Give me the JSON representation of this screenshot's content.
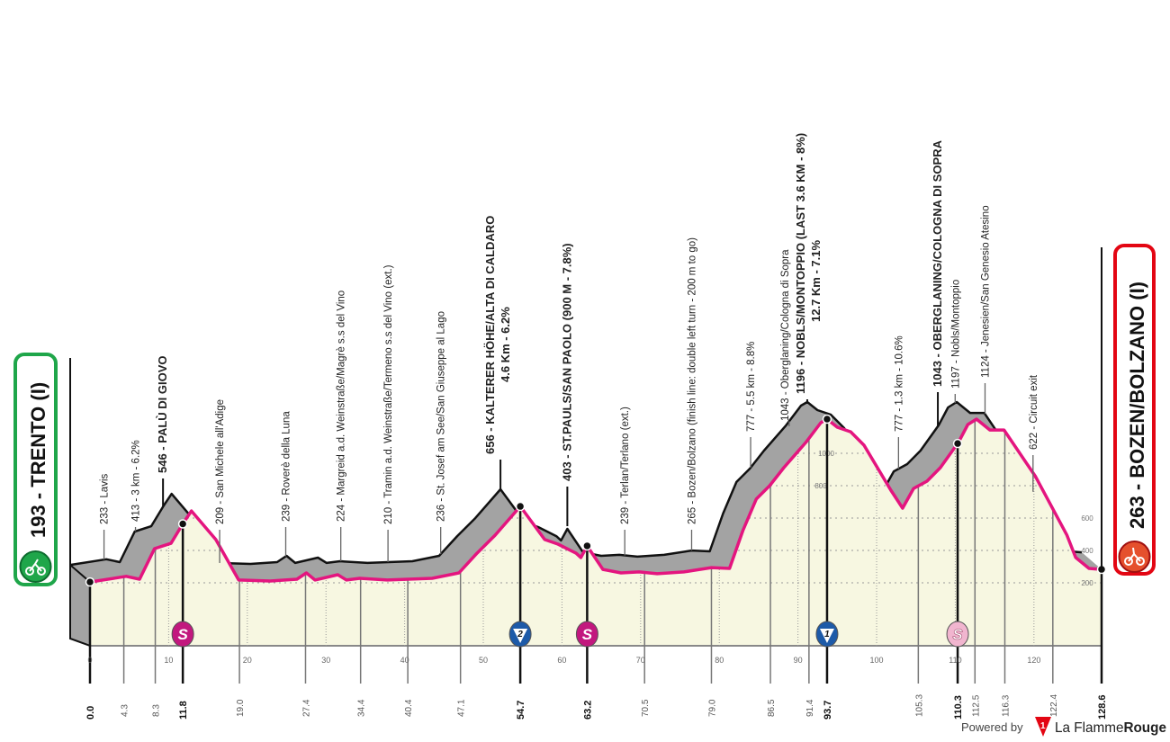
{
  "start": {
    "label": "193 - TRENTO (I)",
    "color": "#1fa64a"
  },
  "finish": {
    "label": "263 - BOZEN/BOLZANO (I)",
    "color": "#e30613"
  },
  "footer": {
    "powered": "Powered by",
    "brand_a": "La Flamme",
    "brand_b": "Rouge",
    "logo_digit": "1"
  },
  "chart_data": {
    "type": "area",
    "xlabel": "",
    "ylabel": "",
    "xlim": [
      0,
      128.6
    ],
    "x_ticks": [
      0,
      10,
      20,
      30,
      40,
      50,
      60,
      70,
      80,
      90,
      100,
      110,
      120
    ],
    "y_ticks": [
      200,
      400,
      600,
      800,
      1000
    ],
    "colors": {
      "profile_line": "#e4157f",
      "profile_fill": "#f7f7e1",
      "side": "#a3a3a3",
      "kom": "#1d5aa8",
      "sprint": "#c2187e",
      "sprint_light": "#f1b5cf"
    },
    "profile": [
      [
        0,
        205
      ],
      [
        4.6,
        240
      ],
      [
        6.3,
        222
      ],
      [
        8.2,
        411
      ],
      [
        10.3,
        444
      ],
      [
        11.9,
        572
      ],
      [
        12.9,
        644
      ],
      [
        16,
        467
      ],
      [
        18.9,
        217
      ],
      [
        22.9,
        211
      ],
      [
        26.3,
        222
      ],
      [
        27.5,
        261
      ],
      [
        28.6,
        217
      ],
      [
        31.5,
        250
      ],
      [
        32.6,
        217
      ],
      [
        34.3,
        228
      ],
      [
        37.8,
        217
      ],
      [
        43.5,
        228
      ],
      [
        46.9,
        261
      ],
      [
        49.2,
        383
      ],
      [
        51.5,
        494
      ],
      [
        54.7,
        672
      ],
      [
        57.8,
        467
      ],
      [
        59.5,
        439
      ],
      [
        61.8,
        383
      ],
      [
        62.4,
        356
      ],
      [
        63.2,
        428
      ],
      [
        65.2,
        283
      ],
      [
        67.5,
        261
      ],
      [
        69.8,
        267
      ],
      [
        72.1,
        256
      ],
      [
        75.5,
        267
      ],
      [
        79,
        294
      ],
      [
        81.3,
        289
      ],
      [
        83,
        522
      ],
      [
        84.7,
        717
      ],
      [
        86.4,
        800
      ],
      [
        88.2,
        911
      ],
      [
        91,
        1067
      ],
      [
        92.9,
        1189
      ],
      [
        93.7,
        1211
      ],
      [
        95,
        1161
      ],
      [
        96.7,
        1133
      ],
      [
        98.4,
        1050
      ],
      [
        101.8,
        772
      ],
      [
        103.3,
        661
      ],
      [
        104.7,
        783
      ],
      [
        106.4,
        828
      ],
      [
        108.1,
        911
      ],
      [
        110.4,
        1067
      ],
      [
        111.6,
        1178
      ],
      [
        112.7,
        1211
      ],
      [
        114.4,
        1144
      ],
      [
        116.2,
        1144
      ],
      [
        120.2,
        856
      ],
      [
        124.2,
        494
      ],
      [
        125.3,
        356
      ],
      [
        127,
        289
      ],
      [
        128.6,
        283
      ]
    ],
    "km_points": [
      {
        "km": "0.0",
        "bold": true
      },
      {
        "km": "4.3"
      },
      {
        "km": "8.3"
      },
      {
        "km": "11.8",
        "bold": true
      },
      {
        "km": "19.0"
      },
      {
        "km": "27.4"
      },
      {
        "km": "34.4"
      },
      {
        "km": "40.4"
      },
      {
        "km": "47.1"
      },
      {
        "km": "54.7",
        "bold": true
      },
      {
        "km": "63.2",
        "bold": true
      },
      {
        "km": "70.5"
      },
      {
        "km": "79.0"
      },
      {
        "km": "86.5"
      },
      {
        "km": "91.4"
      },
      {
        "km": "93.7",
        "bold": true
      },
      {
        "km": "105.3"
      },
      {
        "km": "110.3",
        "bold": true
      },
      {
        "km": "112.5"
      },
      {
        "km": "116.3"
      },
      {
        "km": "122.4"
      },
      {
        "km": "128.6",
        "bold": true
      }
    ],
    "annotations": [
      {
        "km": 4.3,
        "text": "233 - Lavis"
      },
      {
        "km": 8.3,
        "text": "413 - 3 km - 6.2%"
      },
      {
        "km": 11.8,
        "text": "546 - PALÙ DI GIOVO",
        "bold": true
      },
      {
        "km": 19.0,
        "text": "209 - San Michele all'Adige"
      },
      {
        "km": 27.4,
        "text": "239 - Roverè della Luna"
      },
      {
        "km": 34.4,
        "text": "224 - Margreid a.d. Weinstraße/Magrè s.s del Vino"
      },
      {
        "km": 40.4,
        "text": "210 - Tramin a.d. Weinstraße/Termeno s.s del Vino (ext.)"
      },
      {
        "km": 47.1,
        "text": "236 - St. Josef am See/San Giuseppe al Lago"
      },
      {
        "km": 54.7,
        "text": "656 - KALTERER HÖHE/ALTA DI CALDARO",
        "sub": "4.6 Km - 6.2%",
        "bold": true
      },
      {
        "km": 63.2,
        "text": "403 - ST.PAULS/SAN PAOLO (900 M - 7.8%)",
        "bold": true
      },
      {
        "km": 70.5,
        "text": "239 - Terlan/Terlano (ext.)"
      },
      {
        "km": 79.0,
        "text": "265 - Bozen/Bolzano (finish line: double left turn - 200 m to go)"
      },
      {
        "km": 86.5,
        "text": "777 - 5.5 km - 8.8%"
      },
      {
        "km": 91.4,
        "text": "1043 - Oberglaning/Cologna di Sopra"
      },
      {
        "km": 93.7,
        "text": "1196 - NOBLS/MONTOPPIO (LAST 3.6 KM - 8%)",
        "sub": "12.7 Km - 7.1%",
        "bold": true
      },
      {
        "km": 105.3,
        "text": "777 - 1.3 km - 10.6%"
      },
      {
        "km": 110.3,
        "text": "1043 - OBERGLANING/COLOGNA DI SOPRA",
        "bold": true
      },
      {
        "km": 112.5,
        "text": "1197 - Nobls/Montoppio"
      },
      {
        "km": 116.3,
        "text": "1124 - Jenesien/San Genesio Atesino"
      },
      {
        "km": 122.4,
        "text": "622 - Circuit exit"
      }
    ],
    "markers": [
      {
        "km": 11.8,
        "type": "sprint",
        "symbol": "S"
      },
      {
        "km": 54.7,
        "type": "kom",
        "symbol": "2"
      },
      {
        "km": 63.2,
        "type": "sprint",
        "symbol": "S"
      },
      {
        "km": 93.7,
        "type": "kom",
        "symbol": "1"
      },
      {
        "km": 110.3,
        "type": "sprint-light",
        "symbol": "S"
      }
    ]
  }
}
